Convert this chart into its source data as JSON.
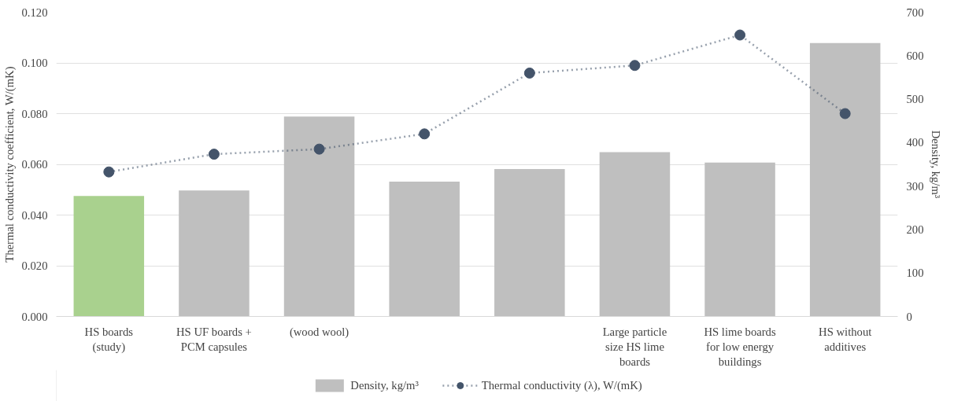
{
  "chart_data": {
    "type": "bar",
    "ylabel": "Thermal conductivity coefficient, W/(mK)",
    "y2label": "Density, kg/m³",
    "categories": [
      "HS boards (study)",
      "HS UF boards + PCM capsules",
      "(wood wool)",
      null,
      null,
      "Large particle size HS lime boards",
      "HS lime boards for low energy buildings",
      "HS without additives"
    ],
    "series": [
      {
        "name": "Density, kg/m³",
        "axis": "y2",
        "colors": [
          "#a9d18e",
          "#bfbfbf",
          "#bfbfbf",
          "#bfbfbf",
          "#bfbfbf",
          "#bfbfbf",
          "#bfbfbf",
          "#bfbfbf"
        ],
        "color": "#bfbfbf",
        "values": [
          277,
          290,
          460,
          310,
          339,
          378,
          354,
          629
        ]
      },
      {
        "name": "Thermal conductivity (λ), W/(mK)",
        "type": "line",
        "color": "#44546a",
        "marker": "circle",
        "line_style": "dotted",
        "values": [
          0.057,
          0.064,
          0.066,
          0.072,
          0.096,
          0.099,
          0.111,
          0.08
        ]
      }
    ],
    "ylim": [
      0,
      0.12
    ],
    "yticks": [
      {
        "value": 0,
        "label": "0.000"
      },
      {
        "value": 0.02,
        "label": "0.020"
      },
      {
        "value": 0.04,
        "label": "0.040"
      },
      {
        "value": 0.06,
        "label": "0.060"
      },
      {
        "value": 0.08,
        "label": "0.080"
      },
      {
        "value": 0.1,
        "label": "0.100"
      },
      {
        "value": 0.12,
        "label": "0.120"
      }
    ],
    "y2lim": [
      0,
      700
    ],
    "y2ticks": [
      0,
      100,
      200,
      300,
      400,
      500,
      600,
      700
    ],
    "grid": "y",
    "legend": "bottom"
  }
}
